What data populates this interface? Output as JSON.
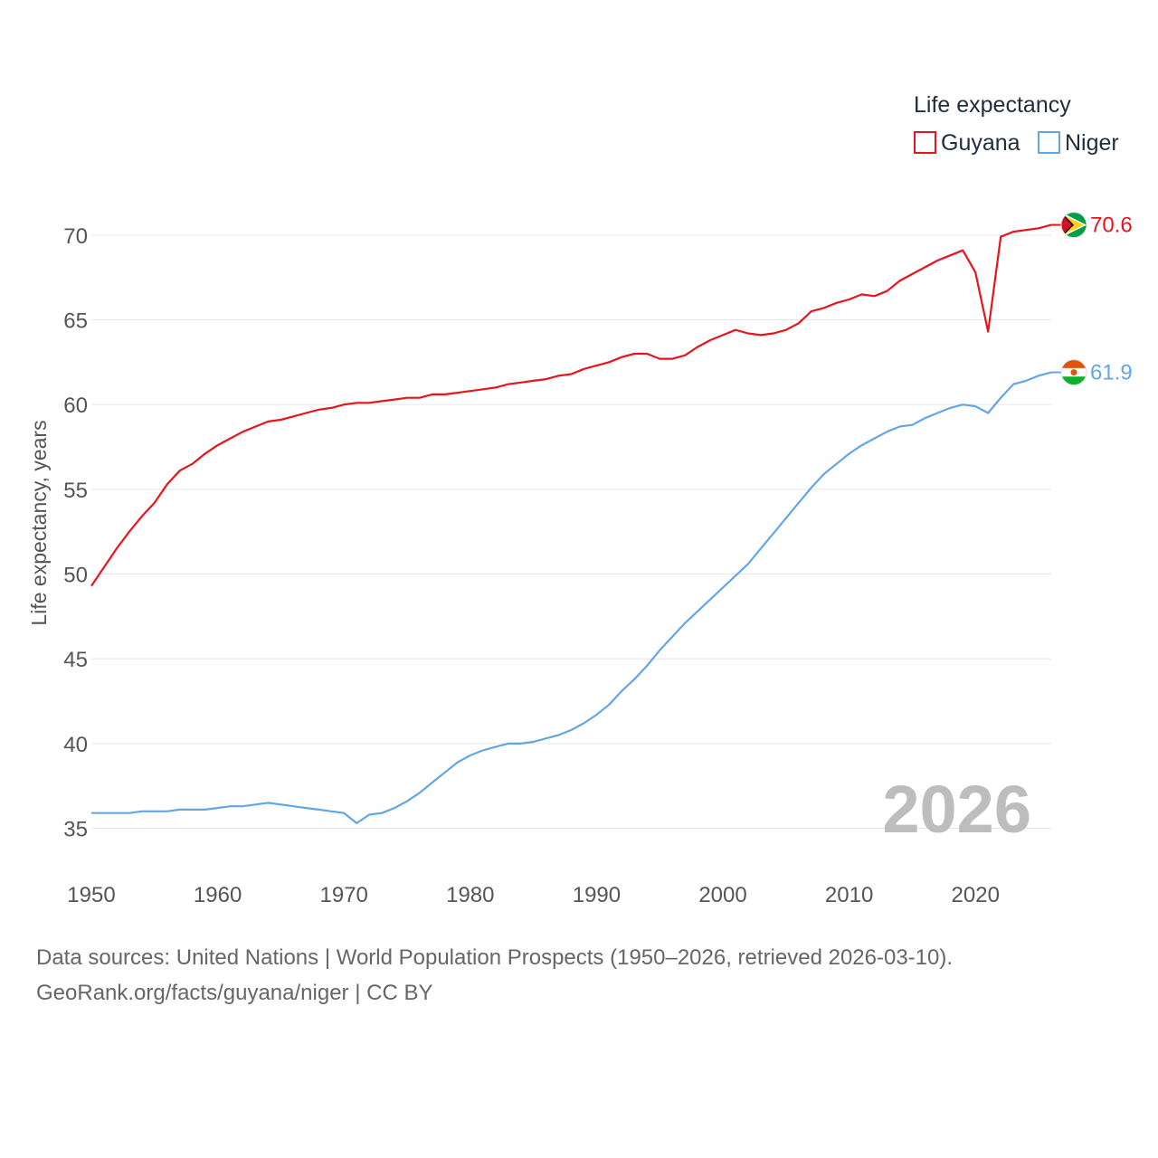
{
  "chart_data": {
    "type": "line",
    "title": "",
    "legend_title": "Life expectancy",
    "legend_position": "top-right",
    "ylabel": "Life expectancy, years",
    "xlabel": "",
    "xlim": [
      1950,
      2026
    ],
    "ylim": [
      33,
      72.5
    ],
    "x_ticks": [
      1950,
      1960,
      1970,
      1980,
      1990,
      2000,
      2010,
      2020
    ],
    "y_ticks": [
      35,
      40,
      45,
      50,
      55,
      60,
      65,
      70
    ],
    "grid": true,
    "current_year": "2026",
    "x": [
      1950,
      1951,
      1952,
      1953,
      1954,
      1955,
      1956,
      1957,
      1958,
      1959,
      1960,
      1961,
      1962,
      1963,
      1964,
      1965,
      1966,
      1967,
      1968,
      1969,
      1970,
      1971,
      1972,
      1973,
      1974,
      1975,
      1976,
      1977,
      1978,
      1979,
      1980,
      1981,
      1982,
      1983,
      1984,
      1985,
      1986,
      1987,
      1988,
      1989,
      1990,
      1991,
      1992,
      1993,
      1994,
      1995,
      1996,
      1997,
      1998,
      1999,
      2000,
      2001,
      2002,
      2003,
      2004,
      2005,
      2006,
      2007,
      2008,
      2009,
      2010,
      2011,
      2012,
      2013,
      2014,
      2015,
      2016,
      2017,
      2018,
      2019,
      2020,
      2021,
      2022,
      2023,
      2024,
      2025,
      2026
    ],
    "series": [
      {
        "name": "Guyana",
        "color": "#e8141c",
        "end_label": "70.6",
        "flag": "guyana-flag",
        "values": [
          49.3,
          50.4,
          51.5,
          52.5,
          53.4,
          54.2,
          55.3,
          56.1,
          56.5,
          57.1,
          57.6,
          58.0,
          58.4,
          58.7,
          59.0,
          59.1,
          59.3,
          59.5,
          59.7,
          59.8,
          60.0,
          60.1,
          60.1,
          60.2,
          60.3,
          60.4,
          60.4,
          60.6,
          60.6,
          60.7,
          60.8,
          60.9,
          61.0,
          61.2,
          61.3,
          61.4,
          61.5,
          61.7,
          61.8,
          62.1,
          62.3,
          62.5,
          62.8,
          63.0,
          63.0,
          62.7,
          62.7,
          62.9,
          63.4,
          63.8,
          64.1,
          64.4,
          64.2,
          64.1,
          64.2,
          64.4,
          64.8,
          65.5,
          65.7,
          66.0,
          66.2,
          66.5,
          66.4,
          66.7,
          67.3,
          67.7,
          68.1,
          68.5,
          68.8,
          69.1,
          67.8,
          64.3,
          69.9,
          70.2,
          70.3,
          70.4,
          70.6
        ]
      },
      {
        "name": "Niger",
        "color": "#64a5e6",
        "end_label": "61.9",
        "flag": "niger-flag",
        "values": [
          35.9,
          35.9,
          35.9,
          35.9,
          36.0,
          36.0,
          36.0,
          36.1,
          36.1,
          36.1,
          36.2,
          36.3,
          36.3,
          36.4,
          36.5,
          36.4,
          36.3,
          36.2,
          36.1,
          36.0,
          35.9,
          35.3,
          35.8,
          35.9,
          36.2,
          36.6,
          37.1,
          37.7,
          38.3,
          38.9,
          39.3,
          39.6,
          39.8,
          40.0,
          40.0,
          40.1,
          40.3,
          40.5,
          40.8,
          41.2,
          41.7,
          42.3,
          43.1,
          43.8,
          44.6,
          45.5,
          46.3,
          47.1,
          47.8,
          48.5,
          49.2,
          49.9,
          50.6,
          51.5,
          52.4,
          53.3,
          54.2,
          55.1,
          55.9,
          56.5,
          57.1,
          57.6,
          58.0,
          58.4,
          58.7,
          58.8,
          59.2,
          59.5,
          59.8,
          60.0,
          59.9,
          59.5,
          60.4,
          61.2,
          61.4,
          61.7,
          61.9
        ]
      }
    ]
  },
  "source": {
    "line1": "Data sources: United Nations | World Population Prospects (1950–2026, retrieved 2026-03-10).",
    "line2": "GeoRank.org/facts/guyana/niger | CC BY"
  }
}
